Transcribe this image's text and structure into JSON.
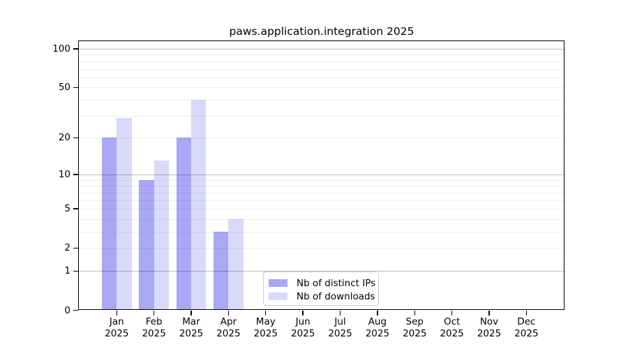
{
  "chart_data": {
    "type": "bar",
    "title": "paws.application.integration 2025",
    "x_ticks": [
      {
        "month": "Jan",
        "year": "2025"
      },
      {
        "month": "Feb",
        "year": "2025"
      },
      {
        "month": "Mar",
        "year": "2025"
      },
      {
        "month": "Apr",
        "year": "2025"
      },
      {
        "month": "May",
        "year": "2025"
      },
      {
        "month": "Jun",
        "year": "2025"
      },
      {
        "month": "Jul",
        "year": "2025"
      },
      {
        "month": "Aug",
        "year": "2025"
      },
      {
        "month": "Sep",
        "year": "2025"
      },
      {
        "month": "Oct",
        "year": "2025"
      },
      {
        "month": "Nov",
        "year": "2025"
      },
      {
        "month": "Dec",
        "year": "2025"
      }
    ],
    "series": [
      {
        "name": "Nb of distinct IPs",
        "color": "#a8a8f5",
        "values": [
          20,
          9,
          20,
          3,
          0,
          0,
          0,
          0,
          0,
          0,
          0,
          0
        ]
      },
      {
        "name": "Nb of downloads",
        "color": "#d9d9f9",
        "values": [
          29,
          13,
          40,
          4,
          0,
          0,
          0,
          0,
          0,
          0,
          0,
          0
        ]
      }
    ],
    "y_axis": {
      "scale": "log1p",
      "tick_values": [
        0,
        1,
        2,
        5,
        10,
        20,
        50,
        100
      ],
      "ylim": [
        0,
        115
      ],
      "major_gridlines": [
        1,
        10,
        100
      ],
      "minor_gridlines": [
        2,
        3,
        4,
        5,
        6,
        7,
        8,
        9,
        20,
        30,
        40,
        50,
        60,
        70,
        80,
        90
      ],
      "grid": "on"
    },
    "legend": {
      "position": "lower center"
    }
  }
}
